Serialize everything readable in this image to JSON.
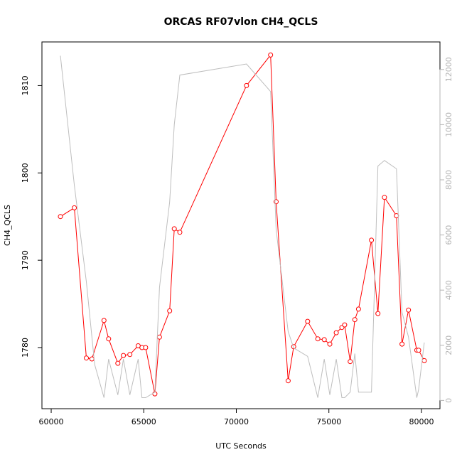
{
  "chart_data": {
    "type": "line",
    "title": "ORCAS RF07vlon CH4_QCLS",
    "xlabel": "UTC Seconds",
    "ylabel": "CH4_QCLS",
    "xlim": [
      59500,
      81000
    ],
    "ylim": [
      1773,
      1815
    ],
    "y2lim": [
      -300,
      13000
    ],
    "x_ticks": [
      60000,
      65000,
      70000,
      75000,
      80000
    ],
    "y_ticks": [
      1780,
      1790,
      1800,
      1810
    ],
    "y2_ticks": [
      0,
      2000,
      4000,
      6000,
      8000,
      10000,
      12000
    ],
    "colors": {
      "primary": "#ff0000",
      "secondary": "#bebebe"
    },
    "series": [
      {
        "axis": "left",
        "marker": "open-circle",
        "x": [
          60500,
          61250,
          61900,
          62200,
          62850,
          63100,
          63600,
          63900,
          64250,
          64700,
          64900,
          65100,
          65600,
          65850,
          66400,
          66650,
          66950,
          70550,
          71850,
          72150,
          72800,
          73100,
          73850,
          74400,
          74750,
          75050,
          75400,
          75700,
          75850,
          76150,
          76400,
          76600,
          77300,
          77650,
          78000,
          78650,
          78950,
          79300,
          79750,
          79850,
          80150
        ],
        "y": [
          1795.0,
          1796.0,
          1778.8,
          1778.7,
          1783.1,
          1781.0,
          1778.2,
          1779.1,
          1779.2,
          1780.2,
          1780.0,
          1780.0,
          1774.7,
          1781.2,
          1784.2,
          1793.6,
          1793.2,
          1810.0,
          1813.5,
          1796.7,
          1776.2,
          1780.1,
          1783.0,
          1781.0,
          1780.9,
          1780.4,
          1781.7,
          1782.3,
          1782.6,
          1778.4,
          1783.2,
          1784.4,
          1792.3,
          1783.9,
          1797.2,
          1795.1,
          1780.4,
          1784.3,
          1779.7,
          1779.7,
          1778.5
        ]
      },
      {
        "axis": "right",
        "x": [
          60500,
          61250,
          61900,
          62350,
          62850,
          63100,
          63600,
          63900,
          64250,
          64700,
          64900,
          65100,
          65600,
          65850,
          66400,
          66650,
          66950,
          70550,
          71850,
          72150,
          72800,
          73100,
          73850,
          74400,
          74750,
          75050,
          75400,
          75700,
          75850,
          76150,
          76400,
          76600,
          77300,
          77650,
          78000,
          78650,
          78950,
          79300,
          79750,
          79850,
          80150
        ],
        "y": [
          12500,
          7800,
          4300,
          1300,
          100,
          1500,
          200,
          1500,
          200,
          1500,
          100,
          100,
          300,
          4100,
          7200,
          10000,
          11800,
          12200,
          11200,
          6200,
          2500,
          1900,
          1600,
          100,
          1500,
          200,
          1500,
          100,
          100,
          300,
          1700,
          300,
          300,
          8500,
          8700,
          8400,
          3200,
          2300,
          100,
          400,
          2100
        ]
      }
    ]
  }
}
